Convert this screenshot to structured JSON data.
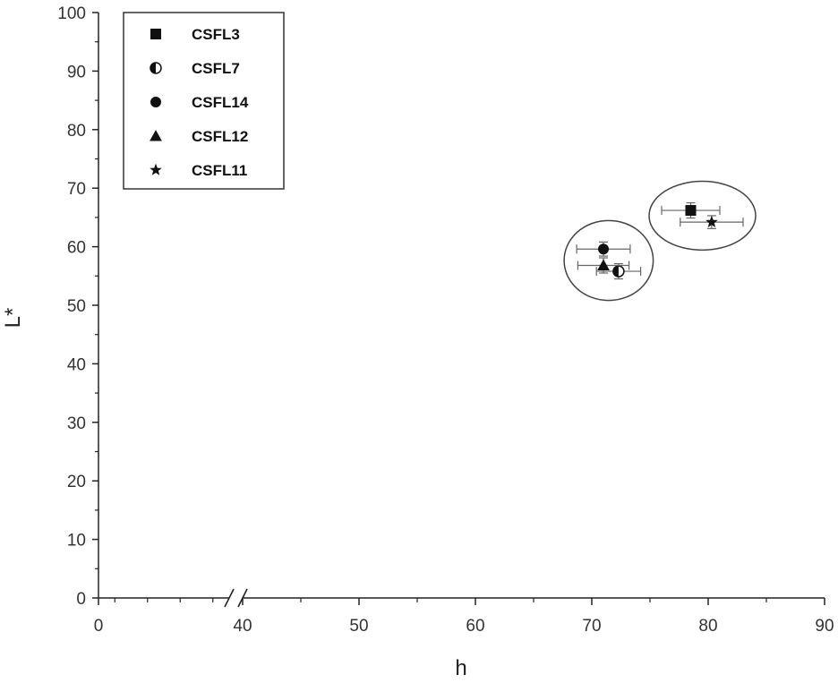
{
  "chart_data": {
    "type": "scatter",
    "xlabel": "h",
    "ylabel": "L*",
    "xlim": [
      0,
      90
    ],
    "ylim": [
      0,
      100
    ],
    "x_axis_break": "between 0 and 40",
    "x_ticks": [
      0,
      40,
      50,
      60,
      70,
      80,
      90
    ],
    "y_ticks": [
      0,
      10,
      20,
      30,
      40,
      50,
      60,
      70,
      80,
      90,
      100
    ],
    "grid": false,
    "legend_position": "top-left",
    "series": [
      {
        "name": "CSFL3",
        "marker": "square",
        "points": [
          {
            "x": 78.5,
            "y": 66.2,
            "x_err": 2.5,
            "y_err": 1.3
          }
        ]
      },
      {
        "name": "CSFL7",
        "marker": "half-filled-circle",
        "points": [
          {
            "x": 72.3,
            "y": 55.8,
            "x_err": 1.9,
            "y_err": 1.3
          }
        ]
      },
      {
        "name": "CSFL14",
        "marker": "circle",
        "points": [
          {
            "x": 71.0,
            "y": 59.6,
            "x_err": 2.3,
            "y_err": 1.2
          }
        ]
      },
      {
        "name": "CSFL12",
        "marker": "triangle",
        "points": [
          {
            "x": 71.0,
            "y": 56.8,
            "x_err": 2.2,
            "y_err": 1.3
          }
        ]
      },
      {
        "name": "CSFL11",
        "marker": "star",
        "points": [
          {
            "x": 80.3,
            "y": 64.2,
            "x_err": 2.7,
            "y_err": 1.1
          }
        ]
      }
    ],
    "groups": [
      {
        "members": [
          "CSFL14",
          "CSFL12",
          "CSFL7"
        ]
      },
      {
        "members": [
          "CSFL3",
          "CSFL11"
        ]
      }
    ]
  }
}
